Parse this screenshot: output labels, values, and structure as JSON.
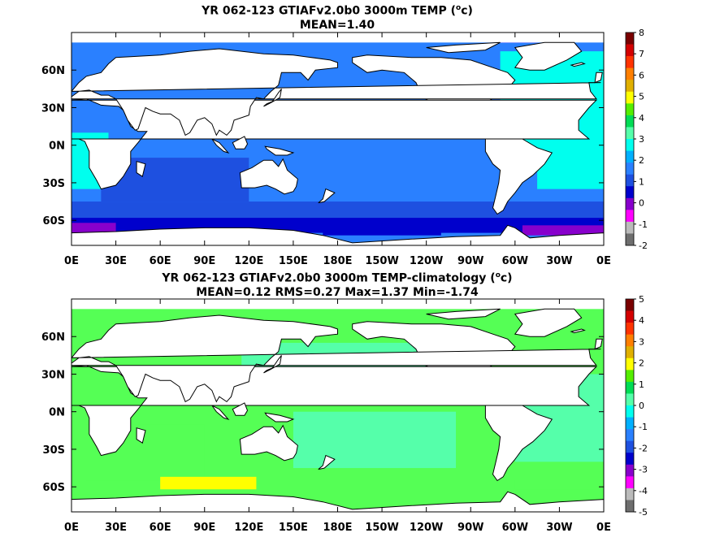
{
  "chart_data": [
    {
      "type": "heatmap",
      "title_line1_pre": "YR 062-123 GTIAFv2.0b0 3000m TEMP (",
      "title_unit_sup": "o",
      "title_line1_post": "c)",
      "title_line2": "MEAN=1.40",
      "x_ticks": [
        "0E",
        "30E",
        "60E",
        "90E",
        "120E",
        "150E",
        "180E",
        "150W",
        "120W",
        "90W",
        "60W",
        "30W",
        "0E"
      ],
      "y_ticks": [
        "60N",
        "30N",
        "0N",
        "30S",
        "60S"
      ],
      "y_tick_values": [
        60,
        30,
        0,
        -30,
        -60
      ],
      "lat_range": [
        -80,
        90
      ],
      "colorbar_levels": [
        "8",
        "7",
        "6",
        "5",
        "4",
        "3",
        "2",
        "1",
        "0",
        "-1",
        "-2"
      ],
      "colorbar_colors": [
        "#7a0000",
        "#d40000",
        "#ff3300",
        "#ff7f00",
        "#e0b000",
        "#ffff00",
        "#55ee00",
        "#00dd55",
        "#55ffaa",
        "#00ffee",
        "#00b0ff",
        "#2a80ff",
        "#1e50e0",
        "#0000cc",
        "#8800cc",
        "#ff00ff",
        "#bbbbbb",
        "#6e6e6e"
      ]
    },
    {
      "type": "heatmap",
      "title_line1_pre": "YR 062-123 GTIAFv2.0b0 3000m TEMP-climatology (",
      "title_unit_sup": "o",
      "title_line1_post": "c)",
      "title_line2": "MEAN=0.12   RMS=0.27   Max=1.37   Min=-1.74",
      "x_ticks": [
        "0E",
        "30E",
        "60E",
        "90E",
        "120E",
        "150E",
        "180E",
        "150W",
        "120W",
        "90W",
        "60W",
        "30W",
        "0E"
      ],
      "y_ticks": [
        "60N",
        "30N",
        "0N",
        "30S",
        "60S"
      ],
      "y_tick_values": [
        60,
        30,
        0,
        -30,
        -60
      ],
      "lat_range": [
        -80,
        90
      ],
      "colorbar_levels": [
        "5",
        "4",
        "3",
        "2",
        "1",
        "0",
        "-1",
        "-2",
        "-3",
        "-4",
        "-5"
      ],
      "colorbar_colors": [
        "#7a0000",
        "#d40000",
        "#ff3300",
        "#ff7f00",
        "#e0b000",
        "#ffff00",
        "#55ee00",
        "#00dd55",
        "#55ffaa",
        "#00ffee",
        "#00b0ff",
        "#2a80ff",
        "#1e50e0",
        "#0000cc",
        "#8800cc",
        "#ff00ff",
        "#bbbbbb",
        "#6e6e6e"
      ]
    }
  ],
  "colors": {
    "land": "#ffffff",
    "mean_blue": "#2a80ff",
    "cyan": "#00ffee",
    "mid_blue": "#1e50e0",
    "navy": "#0000cc",
    "purple": "#8800cc",
    "magenta": "#ff00ff",
    "grey": "#bbbbbb",
    "green_light": "#55ff55",
    "mint": "#55ffaa",
    "yellow": "#ffff00",
    "coast": "#000000"
  }
}
